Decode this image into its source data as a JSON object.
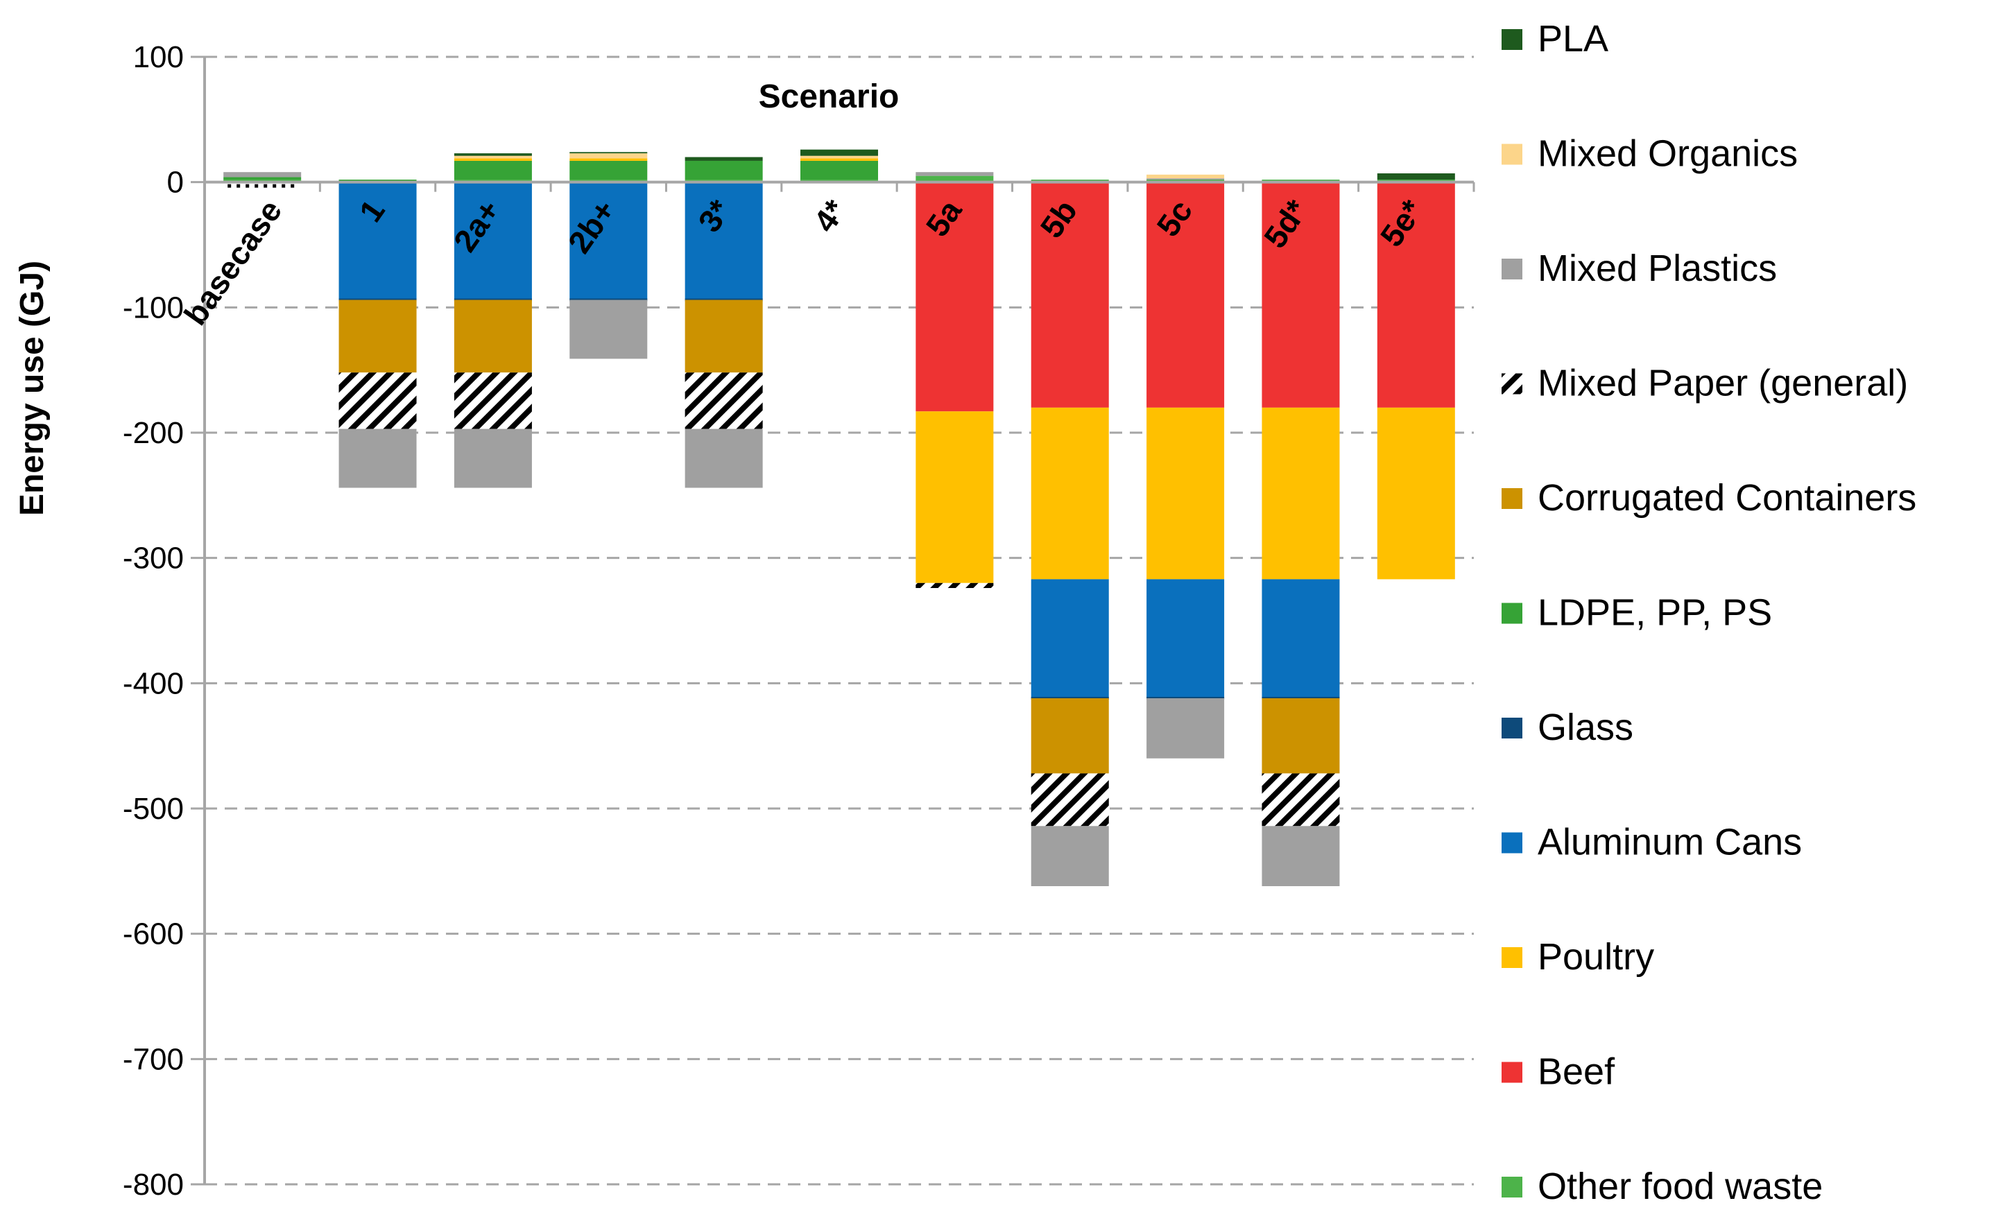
{
  "chart_data": {
    "type": "bar",
    "stacked": true,
    "title": "",
    "xlabel": "Scenario",
    "ylabel": "Energy use (GJ)",
    "ylim": [
      -800,
      100
    ],
    "yticks": [
      100,
      0,
      -100,
      -200,
      -300,
      -400,
      -500,
      -600,
      -700,
      -800
    ],
    "grid": true,
    "legend_position": "right",
    "categories": [
      "basecase",
      "1",
      "2a+",
      "2b+",
      "3*",
      "4*",
      "5a",
      "5b",
      "5c",
      "5d*",
      "5e*"
    ],
    "series": [
      {
        "name": "PLA",
        "color": "#1e5a1e",
        "pattern": "solid",
        "values": [
          0,
          0,
          2,
          1,
          3,
          5,
          0,
          0,
          0,
          0,
          5
        ]
      },
      {
        "name": "Mixed Organics",
        "color": "#fcd58a",
        "pattern": "solid",
        "values": [
          0,
          0,
          2,
          4,
          0,
          2,
          0,
          0,
          3,
          0,
          0
        ]
      },
      {
        "name": "Mixed Plastics",
        "color": "#a0a0a0",
        "pattern": "solid",
        "values": [
          4,
          0,
          0,
          0,
          0,
          0,
          3,
          0,
          1,
          0,
          0
        ]
      },
      {
        "name": "Mixed Paper (general)",
        "color": "#000000",
        "pattern": "hatch",
        "values": [
          0,
          -45,
          -45,
          0,
          -45,
          0,
          -4,
          -42,
          0,
          -42,
          0
        ]
      },
      {
        "name": "Corrugated Containers",
        "color": "#cc9200",
        "pattern": "solid",
        "values": [
          0,
          -58,
          -58,
          0,
          -58,
          0,
          0,
          -60,
          0,
          -60,
          0
        ]
      },
      {
        "name": "LDPE, PP, PS",
        "color": "#36a336",
        "pattern": "solid",
        "values": [
          2,
          2,
          15,
          15,
          15,
          15,
          0,
          0,
          0,
          0,
          0
        ]
      },
      {
        "name": "Glass",
        "color": "#0d4a7a",
        "pattern": "solid",
        "values": [
          0,
          0,
          0,
          0,
          0,
          0,
          0,
          0,
          0,
          0,
          0
        ]
      },
      {
        "name": "Aluminum Cans",
        "color": "#0a70bd",
        "pattern": "solid",
        "values": [
          0,
          -94,
          -94,
          -94,
          -94,
          0,
          0,
          -95,
          -95,
          -95,
          0
        ]
      },
      {
        "name": "Poultry",
        "color": "#ffc000",
        "pattern": "solid",
        "values": [
          0,
          0,
          2,
          2,
          0,
          2,
          -137,
          -137,
          -137,
          -137,
          -137
        ]
      },
      {
        "name": "Beef",
        "color": "#ee3333",
        "pattern": "solid",
        "values": [
          0,
          0,
          0,
          0,
          0,
          0,
          -183,
          -180,
          -180,
          -180,
          -180
        ]
      },
      {
        "name": "Other food waste",
        "color": "#4db34a",
        "pattern": "solid",
        "values": [
          2,
          0,
          2,
          2,
          2,
          2,
          5,
          2,
          2,
          2,
          2
        ]
      }
    ],
    "negative_stack_order": [
      "Other food waste",
      "Beef",
      "Poultry",
      "Aluminum Cans",
      "Corrugated Containers",
      "Mixed Paper (general)",
      "Mixed Plastics"
    ],
    "negative_tail_gray": [
      0,
      -47,
      -47,
      -47,
      -47,
      0,
      0,
      -48,
      -48,
      -48,
      0
    ],
    "basecase_dotted_marker": true
  }
}
